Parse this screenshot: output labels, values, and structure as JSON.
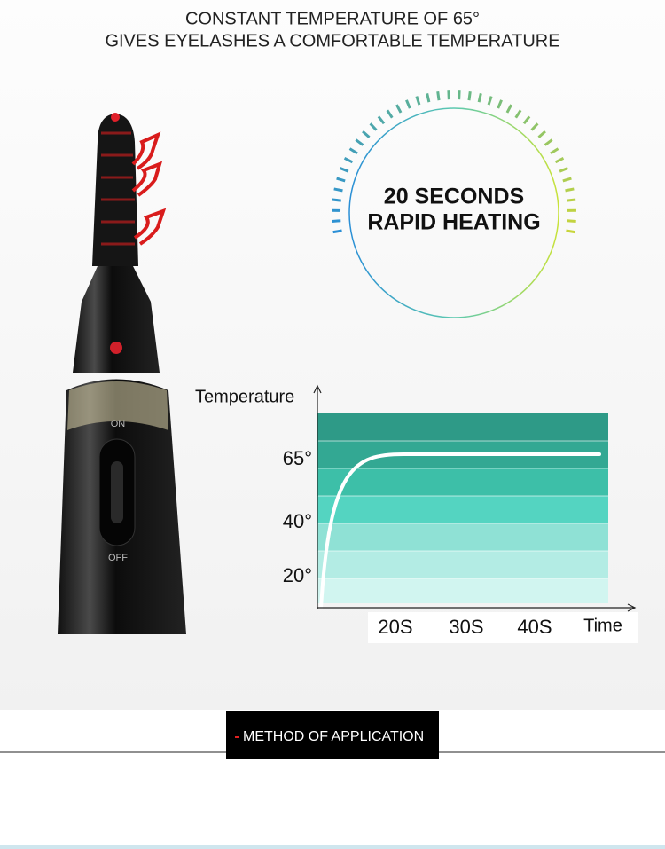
{
  "header": {
    "lines": [
      "CONSTANT TEMPERATURE OF 65°",
      "GIVES EYELASHES A COMFORTABLE TEMPERATURE"
    ]
  },
  "badge": {
    "lines": [
      "20 SECONDS",
      "RAPID HEATING"
    ]
  },
  "device": {
    "on": "ON",
    "off": "OFF"
  },
  "graph": {
    "y_label": "Temperature",
    "y_ticks": [
      "65°",
      "40°",
      "20°"
    ],
    "x_ticks": [
      "20S",
      "30S",
      "40S"
    ],
    "x_label": "Time"
  },
  "section": {
    "title": "METHOD OF APPLICATION"
  }
}
